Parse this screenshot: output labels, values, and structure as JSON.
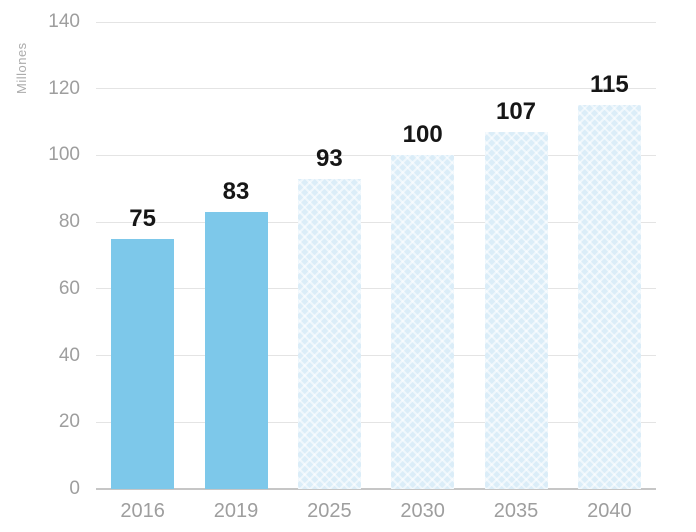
{
  "chart_data": {
    "type": "bar",
    "title": "",
    "xlabel": "",
    "ylabel": "Millones",
    "categories": [
      "2016",
      "2019",
      "2025",
      "2030",
      "2035",
      "2040"
    ],
    "values": [
      75,
      83,
      93,
      100,
      107,
      115
    ],
    "value_labels": [
      "75",
      "83",
      "93",
      "100",
      "107",
      "115"
    ],
    "bar_styles": [
      "solid",
      "solid",
      "hatched",
      "hatched",
      "hatched",
      "hatched"
    ],
    "ylim": [
      0,
      140
    ],
    "yticks": [
      0,
      20,
      40,
      60,
      80,
      100,
      120,
      140
    ],
    "grid": "horizontal",
    "legend": "none",
    "colors": {
      "bar_solid": "#7DC8EA",
      "bar_hatched_base": "#DBEDF8",
      "bar_hatched_line": "#FFFFFF",
      "gridline": "#E4E4E4",
      "axis_line": "#C6C6C6",
      "tick_label": "#9E9E9E",
      "axis_title": "#ABABAB",
      "value_label": "#161616",
      "background": "#FFFFFF"
    }
  }
}
